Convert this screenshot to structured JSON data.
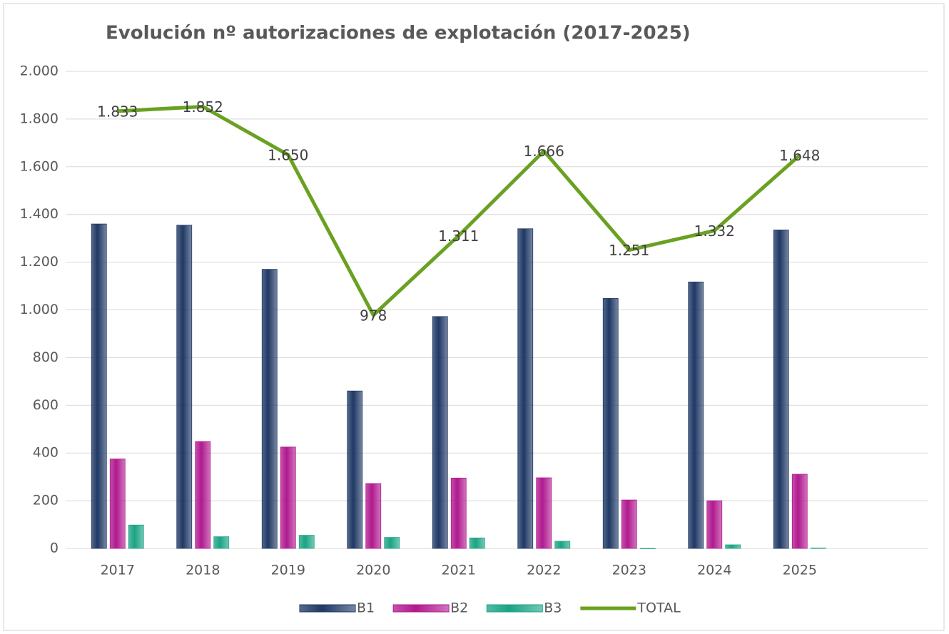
{
  "chart_data": {
    "type": "bar_line",
    "title": "Evolución nº autorizaciones de explotación (2017-2025)",
    "categories": [
      "2017",
      "2018",
      "2019",
      "2020",
      "2021",
      "2022",
      "2023",
      "2024",
      "2025",
      null
    ],
    "series": [
      {
        "name": "B1",
        "type": "bar",
        "color": "#1f3864",
        "values": [
          1360,
          1355,
          1170,
          660,
          972,
          1340,
          1048,
          1117,
          1335,
          null
        ]
      },
      {
        "name": "B2",
        "type": "bar",
        "color": "#b0198f",
        "values": [
          375,
          448,
          425,
          272,
          295,
          296,
          203,
          200,
          311,
          null
        ]
      },
      {
        "name": "B3",
        "type": "bar",
        "color": "#1aa383",
        "values": [
          98,
          49,
          55,
          46,
          44,
          30,
          0,
          15,
          2,
          null
        ]
      },
      {
        "name": "TOTAL",
        "type": "line",
        "color": "#6aa121",
        "values": [
          1833,
          1852,
          1650,
          978,
          1311,
          1666,
          1251,
          1332,
          1648,
          null
        ],
        "value_labels": [
          "1.833",
          "1.852",
          "1.650",
          "978",
          "1.311",
          "1.666",
          "1.251",
          "1.332",
          "1.648",
          null
        ]
      }
    ],
    "ylim": [
      0,
      2000
    ],
    "yticks": [
      0,
      200,
      400,
      600,
      800,
      {
        "value": 1000,
        "label": "1.000"
      },
      {
        "value": 1200,
        "label": "1.200"
      },
      {
        "value": 1400,
        "label": "1.400"
      },
      {
        "value": 1600,
        "label": "1.600"
      },
      {
        "value": 1800,
        "label": "1.800"
      },
      {
        "value": 2000,
        "label": "2.000"
      }
    ],
    "grid": true,
    "legend": "bottom"
  }
}
